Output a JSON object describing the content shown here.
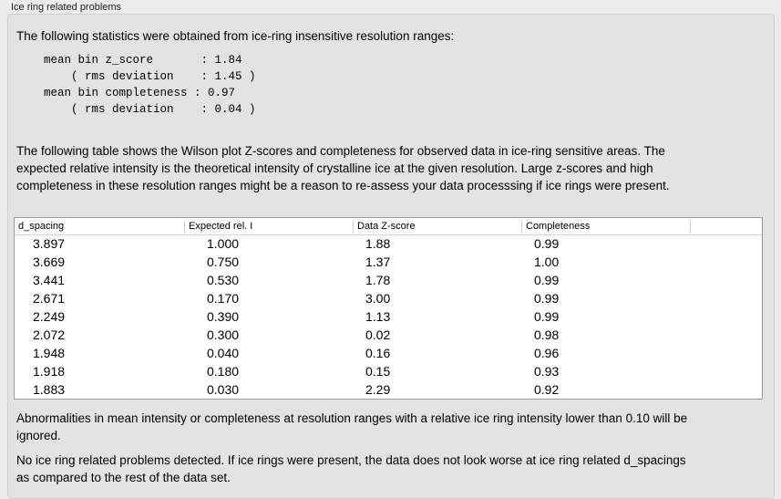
{
  "caption": "Ice ring related problems",
  "intro": "The following statistics were obtained from ice-ring insensitive resolution ranges:",
  "stats": "mean bin z_score       : 1.84\n    ( rms deviation    : 1.45 )\nmean bin completeness : 0.97\n    ( rms deviation    : 0.04 )",
  "table_intro": "The following table shows the Wilson plot Z-scores and completeness for observed data in ice-ring sensitive areas. The expected relative intensity is the theoretical intensity of crystalline ice at the given resolution. Large z-scores and high completeness in these resolution ranges might be a reason to re-assess your data processsing if ice rings were present.",
  "table": {
    "headers": [
      "d_spacing",
      "Expected rel. I",
      "Data Z-score",
      "Completeness"
    ],
    "rows": [
      [
        "3.897",
        "1.000",
        "1.88",
        "0.99"
      ],
      [
        "3.669",
        "0.750",
        "1.37",
        "1.00"
      ],
      [
        "3.441",
        "0.530",
        "1.78",
        "0.99"
      ],
      [
        "2.671",
        "0.170",
        "3.00",
        "0.99"
      ],
      [
        "2.249",
        "0.390",
        "1.13",
        "0.99"
      ],
      [
        "2.072",
        "0.300",
        "0.02",
        "0.98"
      ],
      [
        "1.948",
        "0.040",
        "0.16",
        "0.96"
      ],
      [
        "1.918",
        "0.180",
        "0.15",
        "0.93"
      ],
      [
        "1.883",
        "0.030",
        "2.29",
        "0.92"
      ]
    ]
  },
  "note": "Abnormalities in mean intensity or completeness at resolution ranges with a relative ice ring intensity lower than 0.10 will be ignored.",
  "conclusion": "No ice ring related problems detected. If ice rings were present, the data does not look worse at ice ring related d_spacings as compared to the rest of the data set."
}
